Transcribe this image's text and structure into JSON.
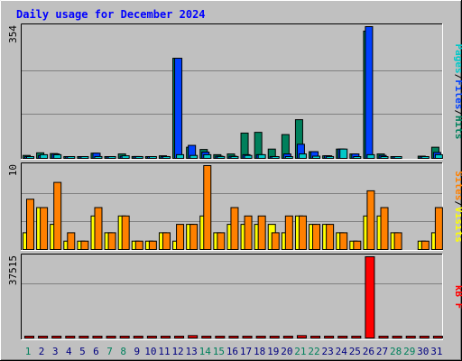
{
  "title": "Daily usage for December 2024",
  "colors": {
    "hits": "#00805c",
    "files": "#0040ff",
    "pages": "#00c8c8",
    "visits": "#ffff00",
    "sites": "#ff8000",
    "kbytes": "#ff0000",
    "weekend_label": "#00805c",
    "weekday_label": "#000080",
    "title": "#0000ff",
    "background": "#c0c0c0"
  },
  "chart_data": [
    {
      "type": "bar",
      "panel": "hits-files-pages",
      "ytick": "354",
      "ylim": [
        0,
        354
      ],
      "legend": [
        "Pages",
        "/",
        "Files",
        "/",
        "Hits"
      ],
      "x": [
        "1",
        "2",
        "3",
        "4",
        "5",
        "6",
        "7",
        "8",
        "9",
        "10",
        "11",
        "12",
        "13",
        "14",
        "15",
        "16",
        "17",
        "18",
        "19",
        "20",
        "21",
        "22",
        "23",
        "24",
        "25",
        "26",
        "27",
        "28",
        "29",
        "30",
        "31"
      ],
      "series": [
        {
          "name": "Hits",
          "values": [
            8,
            15,
            13,
            4,
            3,
            14,
            3,
            12,
            5,
            4,
            7,
            269,
            30,
            24,
            10,
            12,
            68,
            70,
            25,
            64,
            104,
            18,
            7,
            25,
            12,
            342,
            12,
            4,
            0,
            6,
            30
          ]
        },
        {
          "name": "Files",
          "values": [
            5,
            8,
            12,
            4,
            3,
            14,
            3,
            6,
            5,
            3,
            5,
            269,
            35,
            17,
            6,
            6,
            10,
            10,
            5,
            12,
            38,
            18,
            7,
            25,
            12,
            354,
            8,
            3,
            0,
            4,
            16
          ]
        },
        {
          "name": "Pages",
          "values": [
            3,
            10,
            10,
            4,
            2,
            5,
            2,
            7,
            3,
            3,
            2,
            10,
            8,
            10,
            5,
            5,
            8,
            10,
            2,
            4,
            12,
            6,
            5,
            25,
            4,
            10,
            4,
            2,
            0,
            2,
            10
          ]
        }
      ]
    },
    {
      "type": "bar",
      "panel": "sites-visits",
      "ytick": "10",
      "ylim": [
        0,
        10
      ],
      "legend": [
        "Sites",
        "/",
        "Visits"
      ],
      "x": [
        "1",
        "2",
        "3",
        "4",
        "5",
        "6",
        "7",
        "8",
        "9",
        "10",
        "11",
        "12",
        "13",
        "14",
        "15",
        "16",
        "17",
        "18",
        "19",
        "20",
        "21",
        "22",
        "23",
        "24",
        "25",
        "26",
        "27",
        "28",
        "29",
        "30",
        "31"
      ],
      "series": [
        {
          "name": "Visits",
          "values": [
            2,
            5,
            3,
            1,
            1,
            4,
            2,
            4,
            1,
            1,
            2,
            1,
            3,
            4,
            2,
            3,
            3,
            3,
            3,
            2,
            4,
            3,
            3,
            2,
            1,
            4,
            4,
            2,
            0,
            1,
            2
          ]
        },
        {
          "name": "Sites",
          "values": [
            6,
            5,
            8,
            2,
            1,
            5,
            2,
            4,
            1,
            1,
            2,
            3,
            3,
            10,
            2,
            5,
            4,
            4,
            2,
            4,
            4,
            3,
            3,
            2,
            1,
            7,
            5,
            2,
            0,
            1,
            5
          ]
        }
      ]
    },
    {
      "type": "bar",
      "panel": "kbytes",
      "ytick": "37515",
      "ylim": [
        0,
        37515
      ],
      "legend": [
        "kB",
        "F"
      ],
      "x": [
        "1",
        "2",
        "3",
        "4",
        "5",
        "6",
        "7",
        "8",
        "9",
        "10",
        "11",
        "12",
        "13",
        "14",
        "15",
        "16",
        "17",
        "18",
        "19",
        "20",
        "21",
        "22",
        "23",
        "24",
        "25",
        "26",
        "27",
        "28",
        "29",
        "30",
        "31"
      ],
      "series": [
        {
          "name": "kB F",
          "values": [
            30,
            30,
            30,
            30,
            30,
            30,
            30,
            30,
            30,
            30,
            30,
            1000,
            1500,
            30,
            30,
            30,
            30,
            30,
            30,
            30,
            1500,
            30,
            30,
            30,
            30,
            37515,
            30,
            30,
            30,
            30,
            30
          ]
        }
      ]
    }
  ],
  "day_labels": [
    "1",
    "2",
    "3",
    "4",
    "5",
    "6",
    "7",
    "8",
    "9",
    "10",
    "11",
    "12",
    "13",
    "14",
    "15",
    "16",
    "17",
    "18",
    "19",
    "20",
    "21",
    "22",
    "23",
    "24",
    "25",
    "26",
    "27",
    "28",
    "29",
    "30",
    "31"
  ],
  "weekend_days": [
    "1",
    "7",
    "8",
    "14",
    "15",
    "21",
    "22",
    "28",
    "29"
  ]
}
